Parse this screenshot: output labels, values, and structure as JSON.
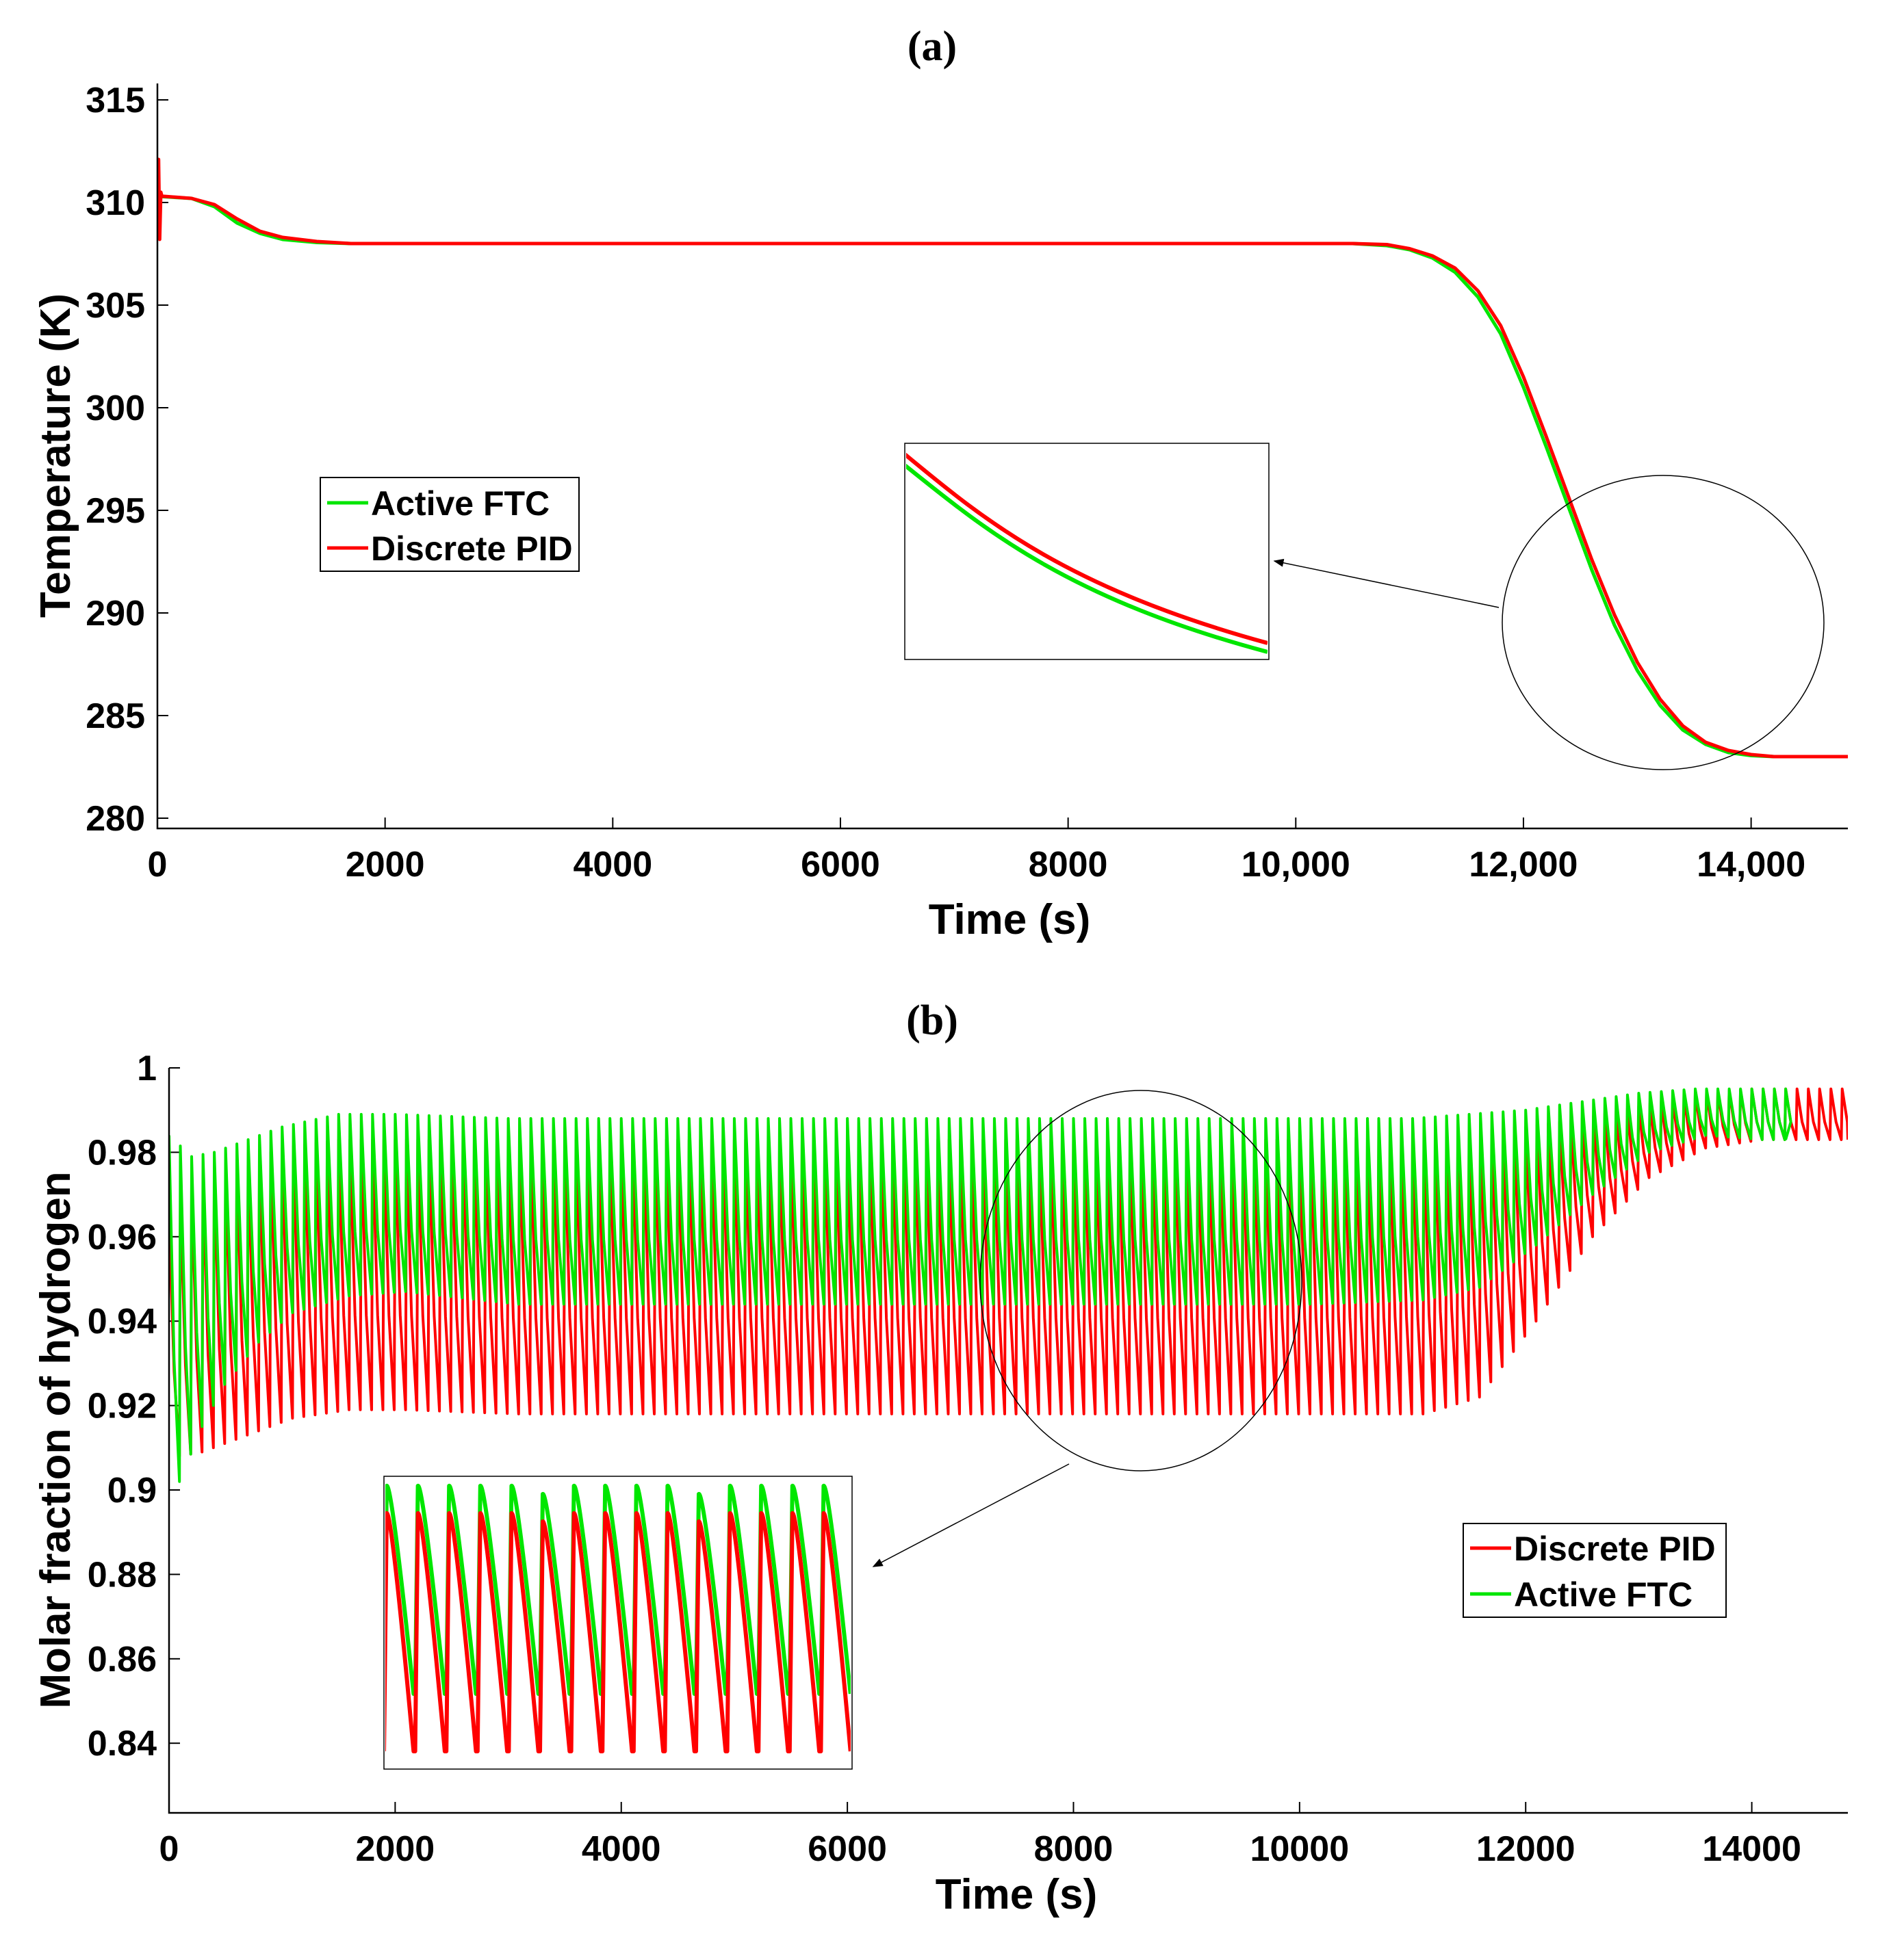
{
  "chart_data": [
    {
      "type": "line",
      "title": "(a)",
      "xlabel": "Time (s)",
      "ylabel": "Temperature (K)",
      "xlim": [
        0,
        14850
      ],
      "ylim": [
        279.5,
        315.8
      ],
      "xticks": [
        0,
        2000,
        4000,
        6000,
        8000,
        10000,
        12000,
        14000
      ],
      "xtick_labels": [
        "0",
        "2000",
        "4000",
        "6000",
        "8000",
        "10,000",
        "12,000",
        "14,000"
      ],
      "yticks": [
        280,
        285,
        290,
        295,
        300,
        305,
        310,
        315
      ],
      "ytick_labels": [
        "280",
        "285",
        "290",
        "295",
        "300",
        "305",
        "310",
        "315"
      ],
      "legend": {
        "placement": "center-left",
        "entries": [
          {
            "label": "Active FTC",
            "color": "#00e600"
          },
          {
            "label": "Discrete PID",
            "color": "#ff0000"
          }
        ]
      },
      "series": [
        {
          "name": "Active FTC",
          "color": "#00e600",
          "x": [
            0,
            300,
            500,
            700,
            900,
            1100,
            1400,
            1700,
            3000,
            6000,
            9000,
            10500,
            10800,
            11000,
            11200,
            11400,
            11600,
            11800,
            12000,
            12200,
            12400,
            12600,
            12800,
            13000,
            13200,
            13400,
            13600,
            13800,
            14000,
            14200,
            14400,
            14600,
            14850
          ],
          "y": [
            310.3,
            310.2,
            309.8,
            309.0,
            308.5,
            308.2,
            308.05,
            308.0,
            308.0,
            308.0,
            308.0,
            308.0,
            307.9,
            307.7,
            307.3,
            306.6,
            305.4,
            303.6,
            301.0,
            298.1,
            295.1,
            292.1,
            289.4,
            287.2,
            285.5,
            284.3,
            283.6,
            283.2,
            283.05,
            283.0,
            283.0,
            283.0,
            283.0
          ]
        },
        {
          "name": "Discrete PID",
          "color": "#ff0000",
          "x": [
            0,
            10,
            20,
            30,
            40,
            60,
            300,
            500,
            700,
            900,
            1100,
            1400,
            1700,
            3000,
            6000,
            9000,
            10500,
            10800,
            11000,
            11200,
            11400,
            11600,
            11800,
            12000,
            12200,
            12400,
            12600,
            12800,
            13000,
            13200,
            13400,
            13600,
            13800,
            14000,
            14200,
            14400,
            14600,
            14850
          ],
          "y": [
            310.3,
            312.1,
            308.2,
            310.5,
            310.3,
            310.3,
            310.2,
            309.9,
            309.2,
            308.6,
            308.3,
            308.1,
            308.0,
            308.0,
            308.0,
            308.0,
            308.0,
            307.95,
            307.75,
            307.4,
            306.8,
            305.7,
            304.0,
            301.5,
            298.6,
            295.6,
            292.6,
            289.9,
            287.6,
            285.8,
            284.5,
            283.7,
            283.3,
            283.1,
            283.0,
            283.0,
            283.0,
            283.0
          ]
        }
      ],
      "annotations": [
        "zoom inset of the falling section, circled region near t = 12,500–14,000 s"
      ]
    },
    {
      "type": "line",
      "title": "(b)",
      "xlabel": "Time (s)",
      "ylabel": "Molar fraction of hydrogen",
      "xlim": [
        0,
        14850
      ],
      "ylim": [
        0.8235,
        1.0
      ],
      "xticks": [
        0,
        2000,
        4000,
        6000,
        8000,
        10000,
        12000,
        14000
      ],
      "xtick_labels": [
        "0",
        "2000",
        "4000",
        "6000",
        "8000",
        "10000",
        "12000",
        "14000"
      ],
      "yticks": [
        0.84,
        0.86,
        0.88,
        0.9,
        0.92,
        0.94,
        0.96,
        0.98,
        1
      ],
      "ytick_labels": [
        "0.84",
        "0.86",
        "0.88",
        "0.9",
        "0.92",
        "0.94",
        "0.96",
        "0.98",
        "1"
      ],
      "legend": {
        "placement": "bottom-right",
        "entries": [
          {
            "label": "Discrete PID",
            "color": "#ff0000"
          },
          {
            "label": "Active FTC",
            "color": "#00e600"
          }
        ]
      },
      "series": [
        {
          "name": "Discrete PID",
          "color": "#ff0000",
          "oscillation_period_s": 100,
          "upper_envelope": {
            "x": [
              0,
              200,
              400,
              700,
              1000,
              1500,
              2000,
              3000,
              6000,
              9000,
              10000,
              11000,
              11500,
              12000,
              12500,
              13000,
              13500,
              14000,
              14850
            ],
            "y": [
              0.965,
              0.972,
              0.975,
              0.978,
              0.981,
              0.983,
              0.983,
              0.983,
              0.983,
              0.983,
              0.983,
              0.984,
              0.985,
              0.986,
              0.988,
              0.991,
              0.994,
              0.995,
              0.995
            ]
          },
          "lower_envelope": {
            "x": [
              0,
              200,
              400,
              700,
              1000,
              1500,
              2000,
              3000,
              6000,
              9000,
              10000,
              11000,
              11500,
              12000,
              12500,
              13000,
              13500,
              14000,
              14850
            ],
            "y": [
              0.908,
              0.909,
              0.911,
              0.914,
              0.917,
              0.919,
              0.919,
              0.918,
              0.918,
              0.918,
              0.918,
              0.918,
              0.922,
              0.94,
              0.96,
              0.974,
              0.981,
              0.983,
              0.983
            ]
          }
        },
        {
          "name": "Active FTC",
          "color": "#00e600",
          "oscillation_period_s": 100,
          "upper_envelope": {
            "x": [
              0,
              200,
              400,
              700,
              1000,
              1500,
              2000,
              3000,
              6000,
              9000,
              10000,
              11000,
              11500,
              12000,
              12500,
              13000,
              13500,
              14000,
              14300
            ],
            "y": [
              0.984,
              0.979,
              0.98,
              0.983,
              0.986,
              0.989,
              0.989,
              0.988,
              0.988,
              0.988,
              0.988,
              0.988,
              0.989,
              0.99,
              0.992,
              0.994,
              0.995,
              0.995,
              0.995
            ]
          },
          "lower_envelope": {
            "x": [
              0,
              200,
              400,
              700,
              1000,
              1500,
              2000,
              3000,
              6000,
              9000,
              10000,
              11000,
              11500,
              12000,
              12500,
              13000,
              13500,
              14000,
              14300
            ],
            "y": [
              0.902,
              0.915,
              0.925,
              0.935,
              0.942,
              0.946,
              0.947,
              0.944,
              0.944,
              0.944,
              0.944,
              0.945,
              0.948,
              0.958,
              0.97,
              0.98,
              0.984,
              0.983,
              0.983
            ]
          }
        }
      ],
      "annotations": [
        "zoom inset of oscillations, circled region near t = 7,000–10,000 s"
      ]
    }
  ]
}
